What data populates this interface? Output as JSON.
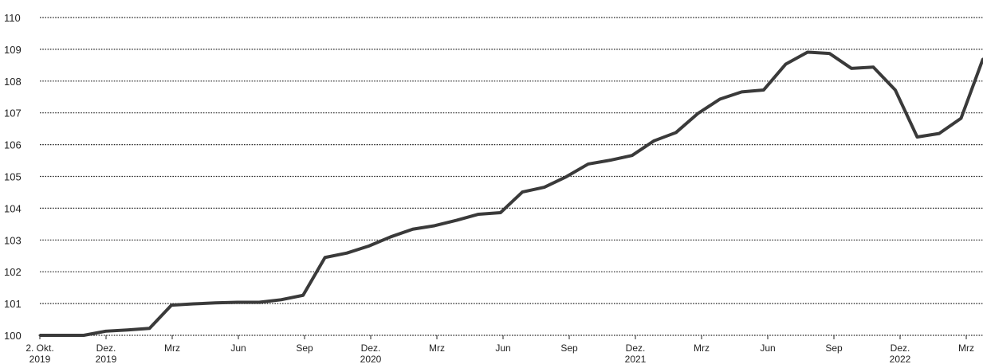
{
  "chart_data": {
    "type": "line",
    "title": "",
    "xlabel": "",
    "ylabel": "",
    "ylim": [
      100,
      110
    ],
    "grid": true,
    "grid_style": "dotted",
    "line_color": "#3a3a3a",
    "y_ticks": [
      "100",
      "101",
      "102",
      "103",
      "104",
      "105",
      "106",
      "107",
      "108",
      "109",
      "110"
    ],
    "x_ticks": [
      {
        "line1": "2. Okt.",
        "line2": "2019"
      },
      {
        "line1": "Dez.",
        "line2": "2019"
      },
      {
        "line1": "Mrz",
        "line2": ""
      },
      {
        "line1": "Jun",
        "line2": ""
      },
      {
        "line1": "Sep",
        "line2": ""
      },
      {
        "line1": "Dez.",
        "line2": "2020"
      },
      {
        "line1": "Mrz",
        "line2": ""
      },
      {
        "line1": "Jun",
        "line2": ""
      },
      {
        "line1": "Sep",
        "line2": ""
      },
      {
        "line1": "Dez.",
        "line2": "2021"
      },
      {
        "line1": "Mrz",
        "line2": ""
      },
      {
        "line1": "Jun",
        "line2": ""
      },
      {
        "line1": "Sep",
        "line2": ""
      },
      {
        "line1": "Dez.",
        "line2": "2022"
      },
      {
        "line1": "Mrz",
        "line2": ""
      }
    ],
    "series": [
      {
        "values": [
          100.0,
          100.0,
          100.0,
          100.13,
          100.17,
          100.22,
          100.95,
          100.99,
          101.02,
          101.04,
          101.04,
          101.12,
          101.26,
          102.45,
          102.59,
          102.81,
          103.1,
          103.34,
          103.45,
          103.62,
          103.81,
          103.86,
          104.51,
          104.66,
          104.99,
          105.39,
          105.51,
          105.66,
          106.12,
          106.38,
          106.98,
          107.43,
          107.66,
          107.72,
          108.53,
          108.91,
          108.87,
          108.4,
          108.44,
          107.72,
          106.24,
          106.35,
          106.83,
          108.7
        ]
      }
    ]
  }
}
